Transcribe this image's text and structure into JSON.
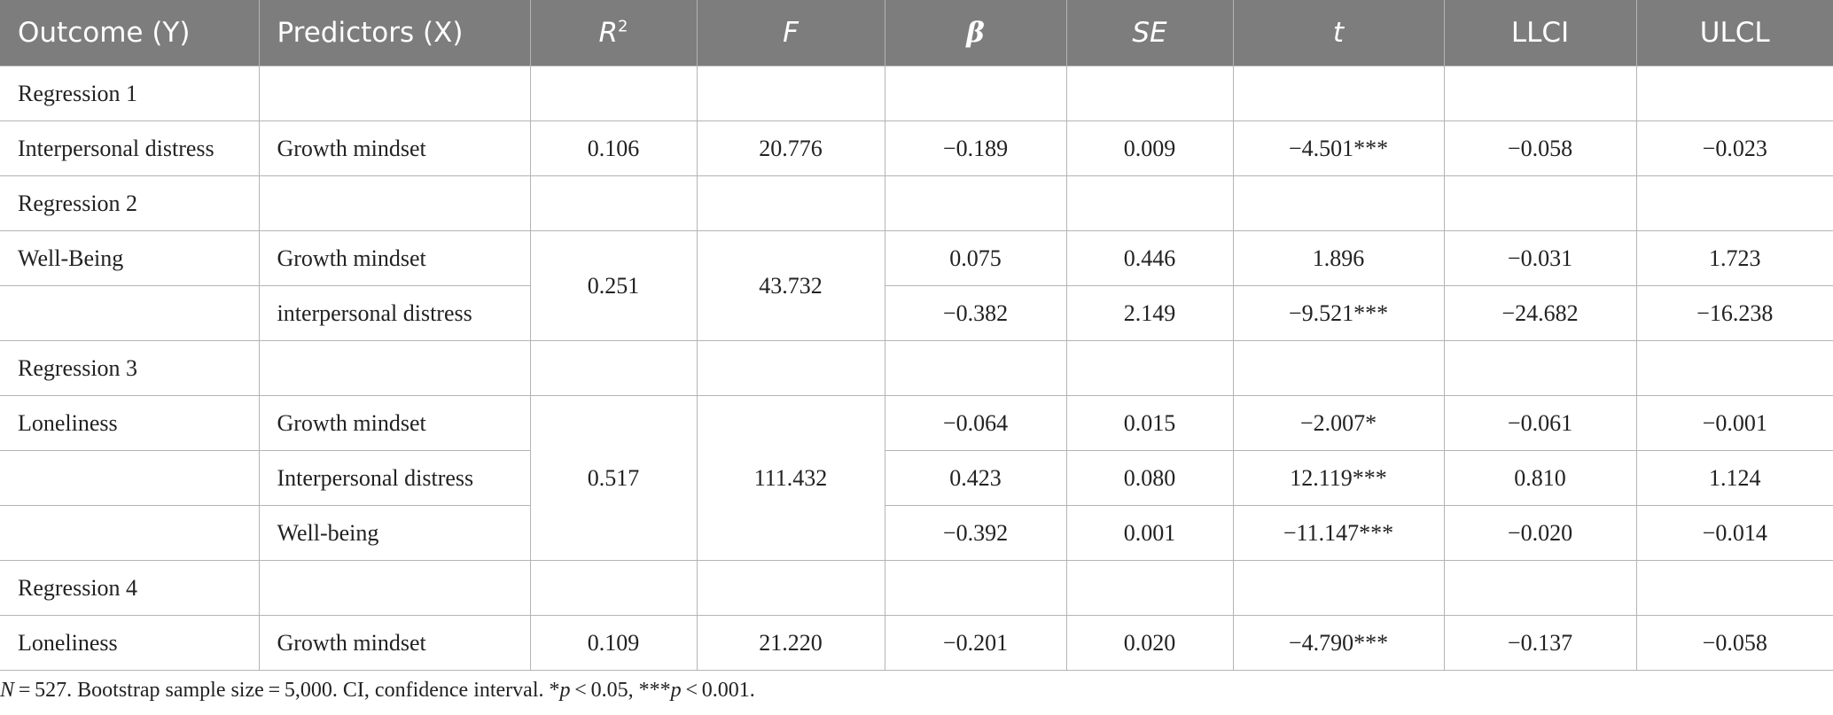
{
  "headers": {
    "outcome": "Outcome (Y)",
    "predictors": "Predictors (X)",
    "r2_base": "R",
    "r2_sup": "2",
    "f": "F",
    "beta": "β",
    "se": "SE",
    "t": "t",
    "llci": "LLCI",
    "ulcl": "ULCL"
  },
  "regressions": [
    {
      "label": "Regression 1",
      "rows": [
        {
          "outcome": "Interpersonal distress",
          "predictor": "Growth mindset",
          "r2": "0.106",
          "f": "20.776",
          "beta": "−0.189",
          "se": "0.009",
          "t": "−4.501***",
          "llci": "−0.058",
          "ulcl": "−0.023"
        }
      ]
    },
    {
      "label": "Regression 2",
      "r2": "0.251",
      "f": "43.732",
      "rows": [
        {
          "outcome": "Well-Being",
          "predictor": "Growth mindset",
          "beta": "0.075",
          "se": "0.446",
          "t": "1.896",
          "llci": "−0.031",
          "ulcl": "1.723"
        },
        {
          "outcome": "",
          "predictor": "interpersonal distress",
          "beta": "−0.382",
          "se": "2.149",
          "t": "−9.521***",
          "llci": "−24.682",
          "ulcl": "−16.238"
        }
      ]
    },
    {
      "label": "Regression 3",
      "r2": "0.517",
      "f": "111.432",
      "rows": [
        {
          "outcome": "Loneliness",
          "predictor": "Growth mindset",
          "beta": "−0.064",
          "se": "0.015",
          "t": "−2.007*",
          "llci": "−0.061",
          "ulcl": "−0.001"
        },
        {
          "outcome": "",
          "predictor": "Interpersonal distress",
          "beta": "0.423",
          "se": "0.080",
          "t": "12.119***",
          "llci": "0.810",
          "ulcl": "1.124"
        },
        {
          "outcome": "",
          "predictor": "Well-being",
          "beta": "−0.392",
          "se": "0.001",
          "t": "−11.147***",
          "llci": "−0.020",
          "ulcl": "−0.014"
        }
      ]
    },
    {
      "label": "Regression 4",
      "rows": [
        {
          "outcome": "Loneliness",
          "predictor": "Growth mindset",
          "r2": "0.109",
          "f": "21.220",
          "beta": "−0.201",
          "se": "0.020",
          "t": "−4.790***",
          "llci": "−0.137",
          "ulcl": "−0.058"
        }
      ]
    }
  ],
  "note": {
    "n_var": "N",
    "n_text": " = 527. Bootstrap sample size = 5,000. CI, confidence interval. *",
    "p1_var": "p",
    "p1_text": " < 0.05, ***",
    "p2_var": "p",
    "p2_text": " < 0.001."
  }
}
